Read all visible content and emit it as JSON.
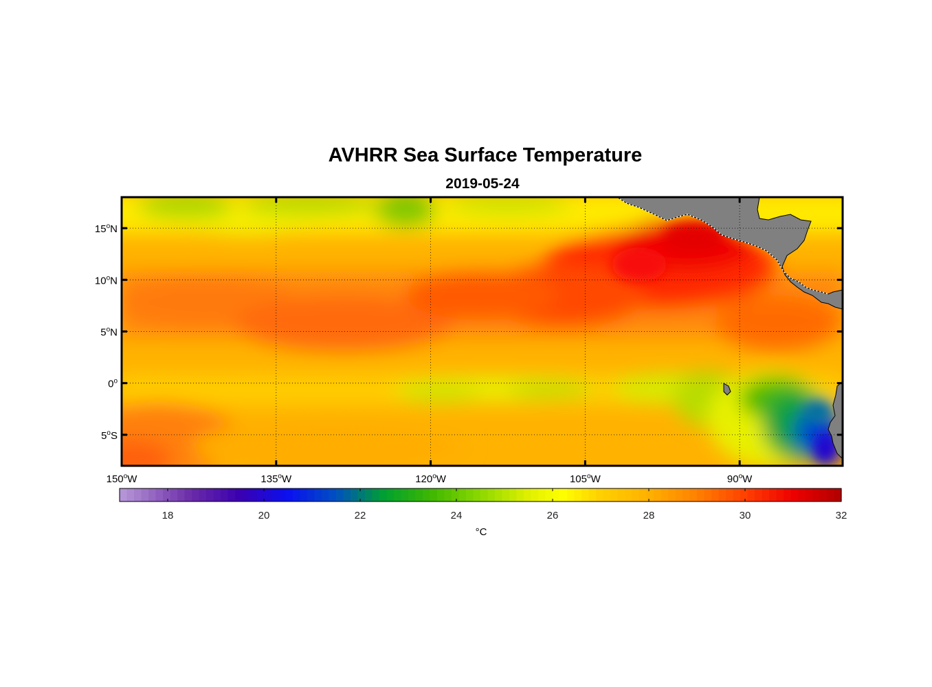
{
  "figure": {
    "title": "AVHRR Sea Surface Temperature",
    "subtitle": "2019-05-24"
  },
  "map": {
    "lon_range": [
      -150,
      -80
    ],
    "lat_range": [
      -8,
      18
    ],
    "lon_ticks": [
      {
        "value": -150,
        "deg": "150",
        "suffix": "W"
      },
      {
        "value": -135,
        "deg": "135",
        "suffix": "W"
      },
      {
        "value": -120,
        "deg": "120",
        "suffix": "W"
      },
      {
        "value": -105,
        "deg": "105",
        "suffix": "W"
      },
      {
        "value": -90,
        "deg": "90",
        "suffix": "W"
      }
    ],
    "lat_ticks": [
      {
        "value": 15,
        "deg": "15",
        "suffix": "N"
      },
      {
        "value": 10,
        "deg": "10",
        "suffix": "N"
      },
      {
        "value": 5,
        "deg": "5",
        "suffix": "N"
      },
      {
        "value": 0,
        "deg": "0",
        "suffix": ""
      },
      {
        "value": -5,
        "deg": "5",
        "suffix": "S"
      }
    ],
    "land_color": "#808080",
    "grid": "dotted"
  },
  "colorbar": {
    "range": [
      17,
      32
    ],
    "ticks": [
      "18",
      "20",
      "22",
      "24",
      "26",
      "28",
      "30",
      "32"
    ],
    "tick_values": [
      18,
      20,
      22,
      24,
      26,
      28,
      30,
      32
    ],
    "unit": "°C",
    "colormap": [
      [
        17,
        "#b89ad8"
      ],
      [
        18.5,
        "#6a2aa8"
      ],
      [
        19.5,
        "#3a00b0"
      ],
      [
        20.5,
        "#0a10f0"
      ],
      [
        21.5,
        "#0050c0"
      ],
      [
        22.5,
        "#00a030"
      ],
      [
        23.5,
        "#40b800"
      ],
      [
        24.5,
        "#8ed800"
      ],
      [
        25.5,
        "#e0f000"
      ],
      [
        26.2,
        "#ffff00"
      ],
      [
        27,
        "#ffd000"
      ],
      [
        28,
        "#ffb000"
      ],
      [
        29,
        "#ff8000"
      ],
      [
        30,
        "#ff4000"
      ],
      [
        31,
        "#ee0000"
      ],
      [
        32,
        "#b00000"
      ]
    ]
  }
}
